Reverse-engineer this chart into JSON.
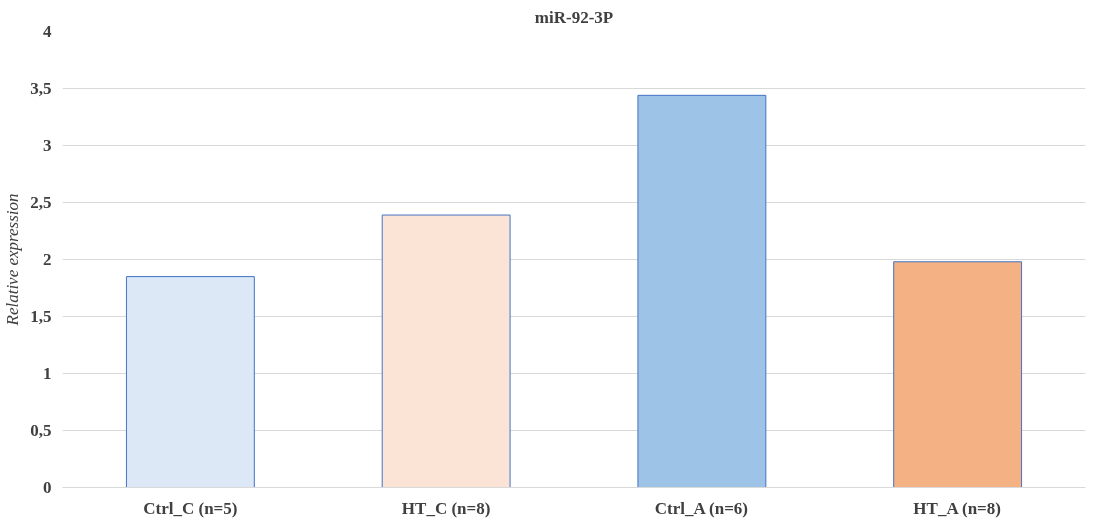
{
  "chart_data": {
    "type": "bar",
    "title": "miR-92-3P",
    "ylabel": "Relative expression",
    "categories": [
      "Ctrl_C (n=5)",
      "HT_C (n=8)",
      "Ctrl_A (n=6)",
      "HT_A (n=8)"
    ],
    "values": [
      1.85,
      2.39,
      3.44,
      1.98
    ],
    "colors": [
      "#dce8f5",
      "#fbe4d5",
      "#9dc3e6",
      "#f4b183"
    ],
    "ylim": [
      0,
      4
    ],
    "yticks": [
      0,
      {
        "value": 0.5,
        "label": "0,5"
      },
      1,
      {
        "value": 1.5,
        "label": "1,5"
      },
      2,
      {
        "value": 2.5,
        "label": "2,5"
      },
      3,
      {
        "value": 3.5,
        "label": "3,5"
      },
      4
    ],
    "grid": "y"
  }
}
